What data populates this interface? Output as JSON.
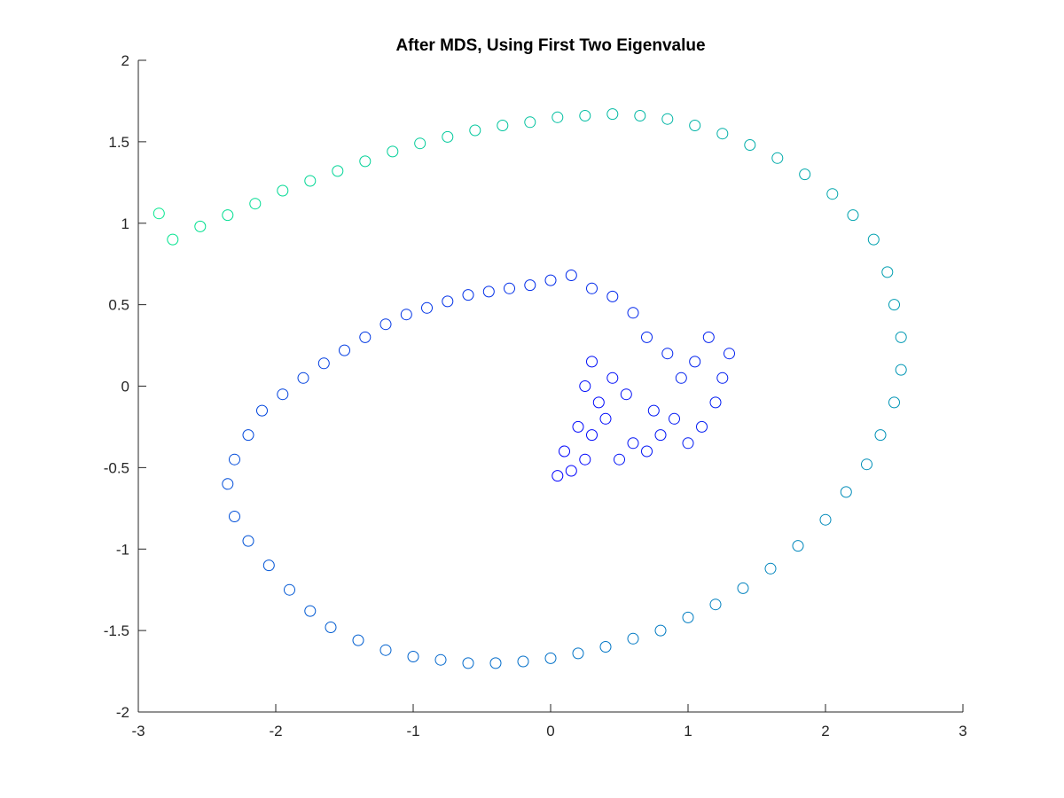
{
  "chart_data": {
    "type": "scatter",
    "title": "After MDS, Using First Two Eigenvalue",
    "xlabel": "",
    "ylabel": "",
    "xlim": [
      -3,
      3
    ],
    "ylim": [
      -2,
      2
    ],
    "x_ticks": [
      "-3",
      "-2",
      "-1",
      "0",
      "1",
      "2",
      "3"
    ],
    "y_ticks": [
      "2",
      "1.5",
      "1",
      "0.5",
      "0",
      "-0.5",
      "-1",
      "-1.5",
      "-2"
    ],
    "grid": false,
    "legend": "none",
    "marker": "circle-open",
    "colormap": "winter",
    "color_low": "#0000ff",
    "color_high": "#00ff80",
    "series": [
      {
        "note_points": "[x, y, colormap position 0-1]",
        "points": [
          [
            0.05,
            -0.55,
            0.0
          ],
          [
            0.15,
            -0.52,
            0.01
          ],
          [
            0.25,
            -0.45,
            0.02
          ],
          [
            0.1,
            -0.4,
            0.02
          ],
          [
            0.3,
            -0.3,
            0.03
          ],
          [
            0.2,
            -0.25,
            0.03
          ],
          [
            0.4,
            -0.2,
            0.04
          ],
          [
            0.35,
            -0.1,
            0.04
          ],
          [
            0.25,
            0.0,
            0.05
          ],
          [
            0.45,
            0.05,
            0.05
          ],
          [
            0.3,
            0.15,
            0.06
          ],
          [
            0.55,
            -0.05,
            0.06
          ],
          [
            0.6,
            -0.35,
            0.07
          ],
          [
            0.5,
            -0.45,
            0.07
          ],
          [
            0.7,
            -0.4,
            0.08
          ],
          [
            0.8,
            -0.3,
            0.08
          ],
          [
            0.75,
            -0.15,
            0.09
          ],
          [
            0.9,
            -0.2,
            0.09
          ],
          [
            1.0,
            -0.35,
            0.1
          ],
          [
            1.1,
            -0.25,
            0.1
          ],
          [
            1.2,
            -0.1,
            0.11
          ],
          [
            1.25,
            0.05,
            0.11
          ],
          [
            1.3,
            0.2,
            0.12
          ],
          [
            1.15,
            0.3,
            0.12
          ],
          [
            1.05,
            0.15,
            0.13
          ],
          [
            0.95,
            0.05,
            0.13
          ],
          [
            0.85,
            0.2,
            0.14
          ],
          [
            0.7,
            0.3,
            0.14
          ],
          [
            0.6,
            0.45,
            0.15
          ],
          [
            0.45,
            0.55,
            0.15
          ],
          [
            0.3,
            0.6,
            0.16
          ],
          [
            0.15,
            0.68,
            0.16
          ],
          [
            0.0,
            0.65,
            0.17
          ],
          [
            -0.15,
            0.62,
            0.17
          ],
          [
            -0.3,
            0.6,
            0.18
          ],
          [
            -0.45,
            0.58,
            0.18
          ],
          [
            -0.6,
            0.56,
            0.19
          ],
          [
            -0.75,
            0.52,
            0.19
          ],
          [
            -0.9,
            0.48,
            0.2
          ],
          [
            -1.05,
            0.44,
            0.2
          ],
          [
            -1.2,
            0.38,
            0.21
          ],
          [
            -1.35,
            0.3,
            0.22
          ],
          [
            -1.5,
            0.22,
            0.23
          ],
          [
            -1.65,
            0.14,
            0.24
          ],
          [
            -1.8,
            0.05,
            0.25
          ],
          [
            -1.95,
            -0.05,
            0.26
          ],
          [
            -2.1,
            -0.15,
            0.27
          ],
          [
            -2.2,
            -0.3,
            0.28
          ],
          [
            -2.3,
            -0.45,
            0.29
          ],
          [
            -2.35,
            -0.6,
            0.3
          ],
          [
            -2.3,
            -0.8,
            0.31
          ],
          [
            -2.2,
            -0.95,
            0.32
          ],
          [
            -2.05,
            -1.1,
            0.33
          ],
          [
            -1.9,
            -1.25,
            0.34
          ],
          [
            -1.75,
            -1.38,
            0.35
          ],
          [
            -1.6,
            -1.48,
            0.36
          ],
          [
            -1.4,
            -1.56,
            0.37
          ],
          [
            -1.2,
            -1.62,
            0.38
          ],
          [
            -1.0,
            -1.66,
            0.39
          ],
          [
            -0.8,
            -1.68,
            0.4
          ],
          [
            -0.6,
            -1.7,
            0.41
          ],
          [
            -0.4,
            -1.7,
            0.42
          ],
          [
            -0.2,
            -1.69,
            0.43
          ],
          [
            0.0,
            -1.67,
            0.44
          ],
          [
            0.2,
            -1.64,
            0.45
          ],
          [
            0.4,
            -1.6,
            0.46
          ],
          [
            0.6,
            -1.55,
            0.47
          ],
          [
            0.8,
            -1.5,
            0.48
          ],
          [
            1.0,
            -1.42,
            0.49
          ],
          [
            1.2,
            -1.34,
            0.5
          ],
          [
            1.4,
            -1.24,
            0.51
          ],
          [
            1.6,
            -1.12,
            0.52
          ],
          [
            1.8,
            -0.98,
            0.53
          ],
          [
            2.0,
            -0.82,
            0.54
          ],
          [
            2.15,
            -0.65,
            0.55
          ],
          [
            2.3,
            -0.48,
            0.56
          ],
          [
            2.4,
            -0.3,
            0.57
          ],
          [
            2.5,
            -0.1,
            0.58
          ],
          [
            2.55,
            0.1,
            0.59
          ],
          [
            2.55,
            0.3,
            0.6
          ],
          [
            2.5,
            0.5,
            0.61
          ],
          [
            2.45,
            0.7,
            0.62
          ],
          [
            2.35,
            0.9,
            0.63
          ],
          [
            2.2,
            1.05,
            0.64
          ],
          [
            2.05,
            1.18,
            0.65
          ],
          [
            1.85,
            1.3,
            0.66
          ],
          [
            1.65,
            1.4,
            0.67
          ],
          [
            1.45,
            1.48,
            0.68
          ],
          [
            1.25,
            1.55,
            0.69
          ],
          [
            1.05,
            1.6,
            0.7
          ],
          [
            0.85,
            1.64,
            0.71
          ],
          [
            0.65,
            1.66,
            0.72
          ],
          [
            0.45,
            1.67,
            0.73
          ],
          [
            0.25,
            1.66,
            0.74
          ],
          [
            0.05,
            1.65,
            0.75
          ],
          [
            -0.15,
            1.62,
            0.76
          ],
          [
            -0.35,
            1.6,
            0.77
          ],
          [
            -0.55,
            1.57,
            0.78
          ],
          [
            -0.75,
            1.53,
            0.79
          ],
          [
            -0.95,
            1.49,
            0.8
          ],
          [
            -1.15,
            1.44,
            0.81
          ],
          [
            -1.35,
            1.38,
            0.82
          ],
          [
            -1.55,
            1.32,
            0.83
          ],
          [
            -1.75,
            1.26,
            0.84
          ],
          [
            -1.95,
            1.2,
            0.85
          ],
          [
            -2.15,
            1.12,
            0.86
          ],
          [
            -2.35,
            1.05,
            0.87
          ],
          [
            -2.55,
            0.98,
            0.88
          ],
          [
            -2.75,
            0.9,
            0.89
          ],
          [
            -2.85,
            1.06,
            0.9
          ]
        ]
      }
    ]
  }
}
